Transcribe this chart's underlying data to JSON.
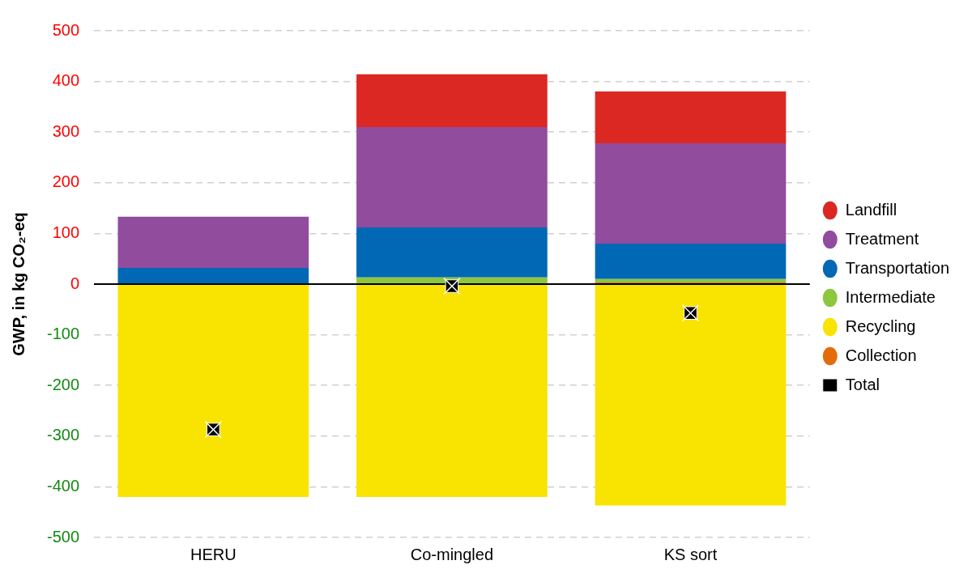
{
  "chart_data": {
    "type": "bar",
    "stacked": true,
    "ylabel": "GWP, in kg CO₂-eq",
    "categories": [
      "HERU",
      "Co-mingled",
      "KS sort"
    ],
    "series": [
      {
        "name": "Total",
        "type": "scatter",
        "color": "#000000",
        "x": [
          "HERU",
          "Co-mingled",
          "KS sort"
        ],
        "values": [
          -287,
          -4,
          -57
        ]
      },
      {
        "name": "Collection",
        "color": "#e36c0a",
        "values": [
          null,
          null,
          3
        ]
      },
      {
        "name": "Recycling",
        "color": "#f9e300",
        "values": [
          -420,
          -420,
          -437
        ]
      },
      {
        "name": "Intermediate",
        "color": "#8dc63f",
        "values": [
          0,
          13,
          7
        ]
      },
      {
        "name": "Transportation",
        "color": "#0068b5",
        "values": [
          32,
          99,
          70
        ]
      },
      {
        "name": "Treatment",
        "color": "#914c9e",
        "values": [
          101,
          198,
          198
        ]
      },
      {
        "name": "Landfill",
        "color": "#dc2822",
        "values": [
          0,
          104,
          102
        ]
      }
    ],
    "ylim": [
      -500,
      500
    ],
    "yticks": [
      -500,
      -400,
      -300,
      -200,
      -100,
      0,
      100,
      200,
      300,
      400,
      500
    ],
    "grid": "y",
    "legend": "right",
    "marker": "square"
  }
}
